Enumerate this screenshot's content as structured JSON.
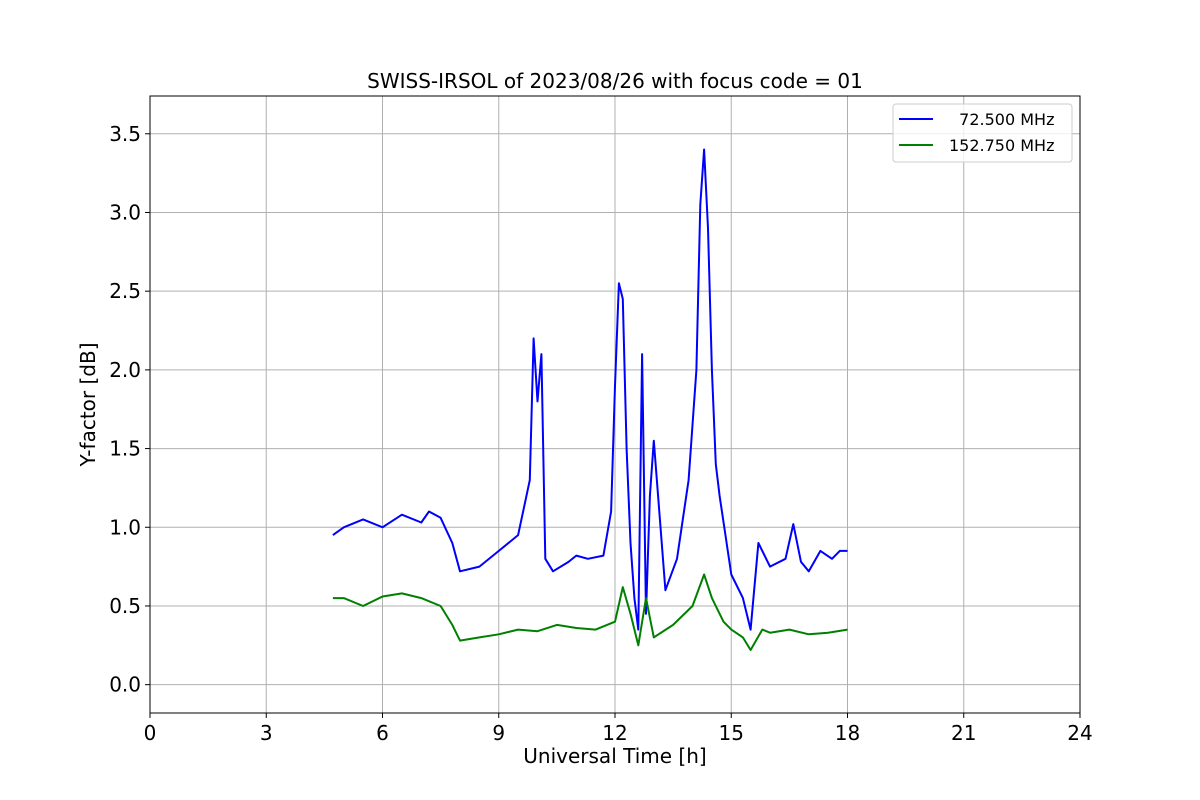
{
  "chart_data": {
    "type": "line",
    "title": "SWISS-IRSOL of 2023/08/26 with focus code = 01",
    "xlabel": "Universal Time [h]",
    "ylabel": "Y-factor [dB]",
    "xlim": [
      0,
      24
    ],
    "ylim": [
      -0.18,
      3.74
    ],
    "x_ticks": [
      0,
      3,
      6,
      9,
      12,
      15,
      18,
      21,
      24
    ],
    "x_tick_labels": [
      "0",
      "3",
      "6",
      "9",
      "12",
      "15",
      "18",
      "21",
      "24"
    ],
    "y_ticks": [
      0.0,
      0.5,
      1.0,
      1.5,
      2.0,
      2.5,
      3.0,
      3.5
    ],
    "y_tick_labels": [
      "0.0",
      "0.5",
      "1.0",
      "1.5",
      "2.0",
      "2.5",
      "3.0",
      "3.5"
    ],
    "grid": true,
    "legend_position": "top-right",
    "series": [
      {
        "name": "  72.500 MHz",
        "color": "#0000ff",
        "x": [
          4.72,
          5.0,
          5.5,
          6.0,
          6.5,
          7.0,
          7.2,
          7.5,
          7.8,
          8.0,
          8.5,
          9.0,
          9.5,
          9.8,
          9.9,
          10.0,
          10.1,
          10.2,
          10.4,
          10.8,
          11.0,
          11.3,
          11.7,
          11.9,
          12.0,
          12.1,
          12.2,
          12.3,
          12.4,
          12.5,
          12.6,
          12.7,
          12.8,
          12.9,
          13.0,
          13.3,
          13.6,
          13.9,
          14.1,
          14.2,
          14.3,
          14.4,
          14.5,
          14.6,
          14.7,
          15.0,
          15.3,
          15.5,
          15.7,
          16.0,
          16.4,
          16.6,
          16.8,
          17.0,
          17.3,
          17.6,
          17.8,
          18.0
        ],
        "y": [
          0.95,
          1.0,
          1.05,
          1.0,
          1.08,
          1.03,
          1.1,
          1.06,
          0.9,
          0.72,
          0.75,
          0.85,
          0.95,
          1.3,
          2.2,
          1.8,
          2.1,
          0.8,
          0.72,
          0.78,
          0.82,
          0.8,
          0.82,
          1.1,
          1.9,
          2.55,
          2.45,
          1.5,
          0.9,
          0.55,
          0.35,
          2.1,
          0.45,
          1.2,
          1.55,
          0.6,
          0.8,
          1.3,
          2.0,
          3.05,
          3.4,
          2.9,
          2.0,
          1.4,
          1.2,
          0.7,
          0.55,
          0.35,
          0.9,
          0.75,
          0.8,
          1.02,
          0.78,
          0.72,
          0.85,
          0.8,
          0.85,
          0.85
        ]
      },
      {
        "name": "152.750 MHz",
        "color": "#008000",
        "x": [
          4.72,
          5.0,
          5.5,
          6.0,
          6.5,
          7.0,
          7.5,
          7.8,
          8.0,
          8.5,
          9.0,
          9.5,
          10.0,
          10.5,
          11.0,
          11.5,
          12.0,
          12.2,
          12.4,
          12.6,
          12.8,
          13.0,
          13.5,
          14.0,
          14.3,
          14.5,
          14.8,
          15.0,
          15.3,
          15.5,
          15.8,
          16.0,
          16.5,
          17.0,
          17.5,
          18.0
        ],
        "y": [
          0.55,
          0.55,
          0.5,
          0.56,
          0.58,
          0.55,
          0.5,
          0.38,
          0.28,
          0.3,
          0.32,
          0.35,
          0.34,
          0.38,
          0.36,
          0.35,
          0.4,
          0.62,
          0.45,
          0.25,
          0.55,
          0.3,
          0.38,
          0.5,
          0.7,
          0.55,
          0.4,
          0.35,
          0.3,
          0.22,
          0.35,
          0.33,
          0.35,
          0.32,
          0.33,
          0.35
        ]
      }
    ]
  }
}
